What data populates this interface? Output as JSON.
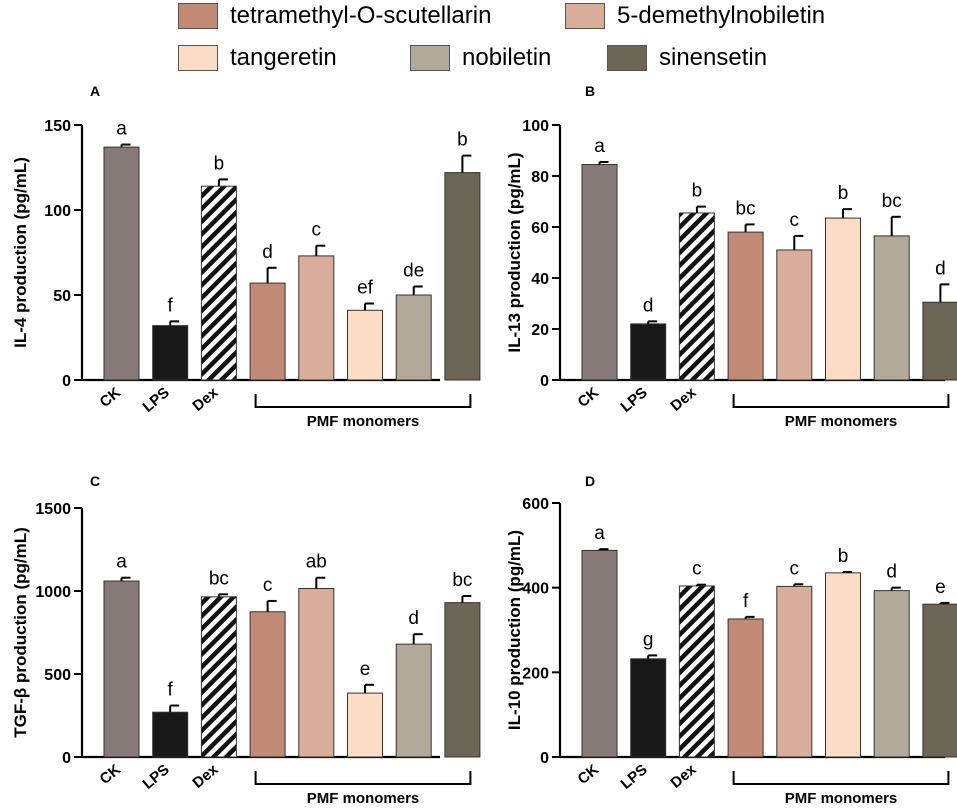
{
  "legend": [
    {
      "label": "tetramethyl-O-scutellarin",
      "color": "#c08a76"
    },
    {
      "label": "5-demethylnobiletin",
      "color": "#d8ae9a"
    },
    {
      "label": "tangeretin",
      "color": "#fcdcc5"
    },
    {
      "label": "nobiletin",
      "color": "#b1aa98"
    },
    {
      "label": "sinensetin",
      "color": "#6b6655"
    }
  ],
  "group_label": "PMF monomers",
  "chart_data": [
    {
      "panel": "A",
      "type": "bar",
      "ylabel": "IL-4 production (pg/mL)",
      "ylim": [
        0,
        150
      ],
      "yticks": [
        0,
        50,
        100,
        150
      ],
      "categories": [
        "CK",
        "LPS",
        "Dex",
        "tetramethyl-O-scutellarin",
        "5-demethylnobiletin",
        "tangeretin",
        "nobiletin",
        "sinensetin"
      ],
      "tick_labels": [
        "CK",
        "LPS",
        "Dex"
      ],
      "values": [
        137,
        32,
        114,
        57,
        73,
        41,
        50,
        122
      ],
      "errors": [
        1.5,
        2.5,
        4,
        9,
        6,
        4,
        5,
        10
      ],
      "letters": [
        "a",
        "f",
        "b",
        "d",
        "c",
        "ef",
        "de",
        "b"
      ]
    },
    {
      "panel": "B",
      "type": "bar",
      "ylabel": "IL-13 production (pg/mL)",
      "ylim": [
        0,
        100
      ],
      "yticks": [
        0,
        20,
        40,
        60,
        80,
        100
      ],
      "categories": [
        "CK",
        "LPS",
        "Dex",
        "tetramethyl-O-scutellarin",
        "5-demethylnobiletin",
        "tangeretin",
        "nobiletin",
        "sinensetin"
      ],
      "tick_labels": [
        "CK",
        "LPS",
        "Dex"
      ],
      "values": [
        84.5,
        22,
        65.5,
        58,
        51,
        63.5,
        56.5,
        30.5
      ],
      "errors": [
        1,
        1,
        2.5,
        3,
        5.5,
        3.5,
        7.5,
        7
      ],
      "letters": [
        "a",
        "d",
        "b",
        "bc",
        "c",
        "b",
        "bc",
        "d"
      ]
    },
    {
      "panel": "C",
      "type": "bar",
      "ylabel": "TGF-β production (pg/mL)",
      "ylim": [
        0,
        1500
      ],
      "yticks": [
        0,
        500,
        1000,
        1500
      ],
      "categories": [
        "CK",
        "LPS",
        "Dex",
        "tetramethyl-O-scutellarin",
        "5-demethylnobiletin",
        "tangeretin",
        "nobiletin",
        "sinensetin"
      ],
      "tick_labels": [
        "CK",
        "LPS",
        "Dex"
      ],
      "values": [
        1060,
        270,
        965,
        875,
        1015,
        385,
        680,
        930
      ],
      "errors": [
        20,
        40,
        15,
        65,
        65,
        50,
        60,
        40
      ],
      "letters": [
        "a",
        "f",
        "bc",
        "c",
        "ab",
        "e",
        "d",
        "bc"
      ]
    },
    {
      "panel": "D",
      "type": "bar",
      "ylabel": "IL-10 production (pg/mL)",
      "ylim": [
        0,
        600
      ],
      "yticks": [
        0,
        200,
        400,
        600
      ],
      "categories": [
        "CK",
        "LPS",
        "Dex",
        "tetramethyl-O-scutellarin",
        "5-demethylnobiletin",
        "tangeretin",
        "nobiletin",
        "sinensetin"
      ],
      "tick_labels": [
        "CK",
        "LPS",
        "Dex"
      ],
      "values": [
        488,
        232,
        404,
        326,
        403,
        435,
        393,
        361
      ],
      "errors": [
        3,
        8,
        3,
        5,
        5,
        2,
        7,
        3
      ],
      "letters": [
        "a",
        "g",
        "c",
        "f",
        "c",
        "b",
        "d",
        "e"
      ]
    }
  ]
}
